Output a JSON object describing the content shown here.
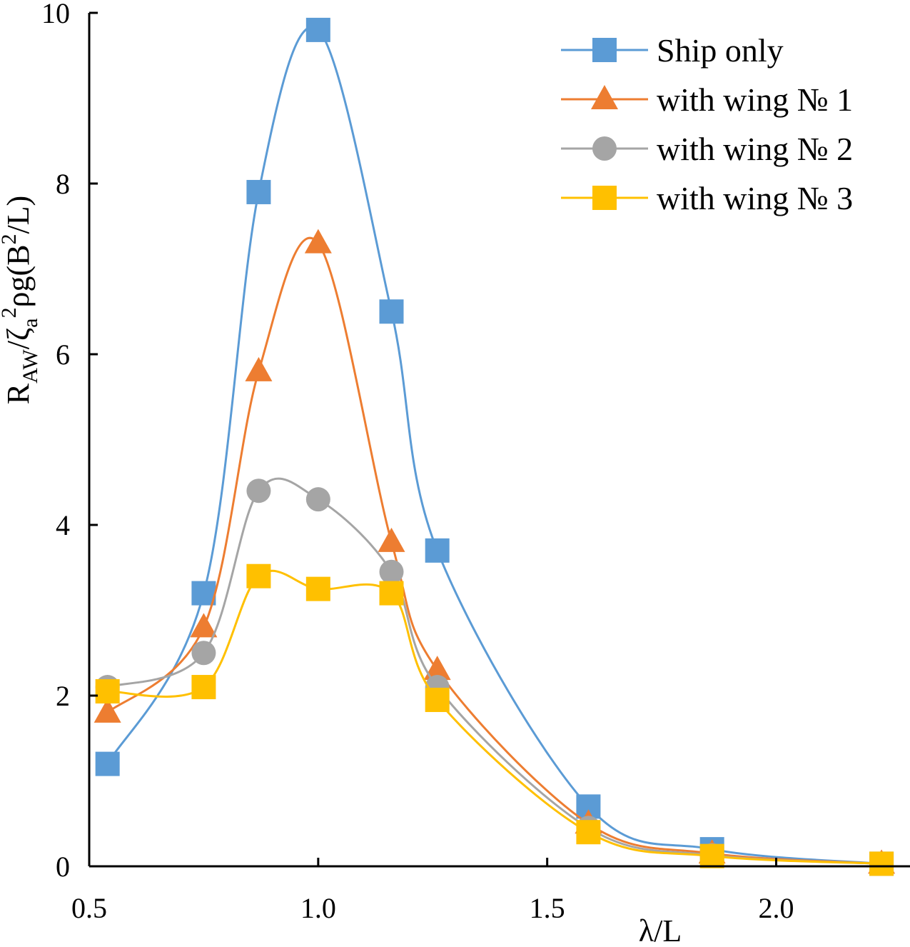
{
  "chart_data": {
    "type": "line",
    "title": "",
    "xlabel": "λ/L",
    "ylabel": {
      "main": "R",
      "sub1": "AW",
      "mid": "/ζ",
      "sub2": "a",
      "sup1": "2",
      "rest": "ρg(B",
      "sup2": "2",
      "end": "/L)"
    },
    "xlim": [
      0.5,
      2.3
    ],
    "ylim": [
      0,
      10
    ],
    "xticks": [
      {
        "v": 0.5,
        "label": "0.5"
      },
      {
        "v": 1.0,
        "label": "1.0"
      },
      {
        "v": 1.5,
        "label": "1.5"
      },
      {
        "v": 2.0,
        "label": "2.0"
      }
    ],
    "yticks": [
      {
        "v": 0,
        "label": "0"
      },
      {
        "v": 2,
        "label": "2"
      },
      {
        "v": 4,
        "label": "4"
      },
      {
        "v": 6,
        "label": "6"
      },
      {
        "v": 8,
        "label": "8"
      },
      {
        "v": 10,
        "label": "10"
      }
    ],
    "grid": false,
    "legend_position": "top-right",
    "series": [
      {
        "name": "Ship only",
        "color": "#5b9bd5",
        "marker": "square",
        "x": [
          0.54,
          0.75,
          0.87,
          1.0,
          1.16,
          1.26,
          1.59,
          1.86,
          2.23
        ],
        "y": [
          1.2,
          3.2,
          7.9,
          9.8,
          6.5,
          3.7,
          0.7,
          0.2,
          0.03
        ]
      },
      {
        "name": "with wing № 1",
        "color": "#ed7d31",
        "marker": "triangle",
        "x": [
          0.54,
          0.75,
          0.87,
          1.0,
          1.16,
          1.26,
          1.59,
          1.86,
          2.23
        ],
        "y": [
          1.8,
          2.8,
          5.8,
          7.3,
          3.8,
          2.3,
          0.5,
          0.15,
          0.03
        ]
      },
      {
        "name": "with wing № 2",
        "color": "#a5a5a5",
        "marker": "circle",
        "x": [
          0.54,
          0.75,
          0.87,
          1.0,
          1.16,
          1.26,
          1.59,
          1.86,
          2.23
        ],
        "y": [
          2.1,
          2.5,
          4.4,
          4.3,
          3.45,
          2.1,
          0.45,
          0.13,
          0.03
        ]
      },
      {
        "name": "with wing № 3",
        "color": "#ffc000",
        "marker": "square",
        "x": [
          0.54,
          0.75,
          0.87,
          1.0,
          1.16,
          1.26,
          1.59,
          1.86,
          2.23
        ],
        "y": [
          2.05,
          2.1,
          3.4,
          3.25,
          3.2,
          1.95,
          0.4,
          0.12,
          0.03
        ]
      }
    ]
  }
}
